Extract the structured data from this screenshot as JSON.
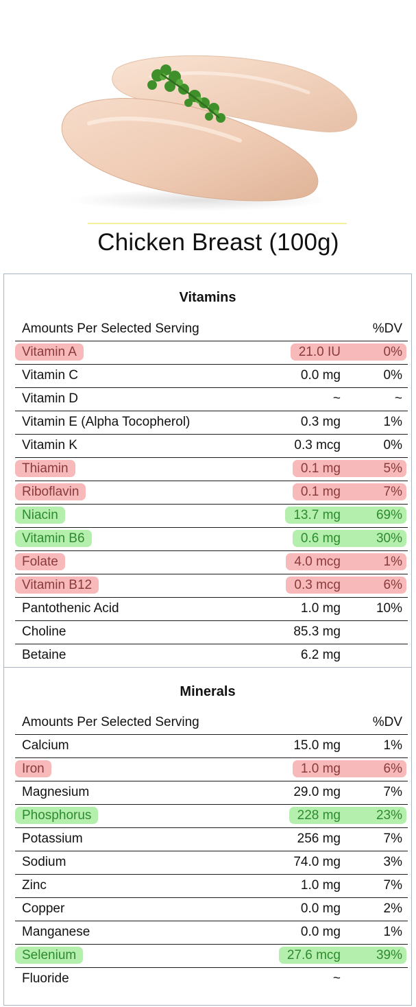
{
  "title": "Chicken Breast (100g)",
  "hero_image": {
    "alt_icon": "chicken-breast-image"
  },
  "colors": {
    "low_highlight": "#f7b9b9",
    "low_text": "#8a3a3a",
    "high_highlight": "#b4efad",
    "high_text": "#2e8a2e",
    "panel_border": "#a9b4c2"
  },
  "vitamins": {
    "heading": "Vitamins",
    "col_name": "Amounts Per Selected Serving",
    "col_dv": "%DV",
    "rows": [
      {
        "name": "Vitamin A",
        "amount": "21.0 IU",
        "dv": "0%",
        "status": "low"
      },
      {
        "name": "Vitamin C",
        "amount": "0.0 mg",
        "dv": "0%",
        "status": "none"
      },
      {
        "name": "Vitamin D",
        "amount": "~",
        "dv": "~",
        "status": "none"
      },
      {
        "name": "Vitamin E (Alpha Tocopherol)",
        "amount": "0.3 mg",
        "dv": "1%",
        "status": "none"
      },
      {
        "name": "Vitamin K",
        "amount": "0.3 mcg",
        "dv": "0%",
        "status": "none"
      },
      {
        "name": "Thiamin",
        "amount": "0.1 mg",
        "dv": "5%",
        "status": "low"
      },
      {
        "name": "Riboflavin",
        "amount": "0.1 mg",
        "dv": "7%",
        "status": "low"
      },
      {
        "name": "Niacin",
        "amount": "13.7 mg",
        "dv": "69%",
        "status": "high"
      },
      {
        "name": "Vitamin B6",
        "amount": "0.6 mg",
        "dv": "30%",
        "status": "high"
      },
      {
        "name": "Folate",
        "amount": "4.0 mcg",
        "dv": "1%",
        "status": "low"
      },
      {
        "name": "Vitamin B12",
        "amount": "0.3 mcg",
        "dv": "6%",
        "status": "low"
      },
      {
        "name": "Pantothenic Acid",
        "amount": "1.0 mg",
        "dv": "10%",
        "status": "none"
      },
      {
        "name": "Choline",
        "amount": "85.3 mg",
        "dv": "",
        "status": "none"
      },
      {
        "name": "Betaine",
        "amount": "6.2 mg",
        "dv": "",
        "status": "none"
      }
    ]
  },
  "minerals": {
    "heading": "Minerals",
    "col_name": "Amounts Per Selected Serving",
    "col_dv": "%DV",
    "rows": [
      {
        "name": "Calcium",
        "amount": "15.0 mg",
        "dv": "1%",
        "status": "none"
      },
      {
        "name": "Iron",
        "amount": "1.0 mg",
        "dv": "6%",
        "status": "low"
      },
      {
        "name": "Magnesium",
        "amount": "29.0 mg",
        "dv": "7%",
        "status": "none"
      },
      {
        "name": "Phosphorus",
        "amount": "228 mg",
        "dv": "23%",
        "status": "high"
      },
      {
        "name": "Potassium",
        "amount": "256 mg",
        "dv": "7%",
        "status": "none"
      },
      {
        "name": "Sodium",
        "amount": "74.0 mg",
        "dv": "3%",
        "status": "none"
      },
      {
        "name": "Zinc",
        "amount": "1.0 mg",
        "dv": "7%",
        "status": "none"
      },
      {
        "name": "Copper",
        "amount": "0.0 mg",
        "dv": "2%",
        "status": "none"
      },
      {
        "name": "Manganese",
        "amount": "0.0 mg",
        "dv": "1%",
        "status": "none"
      },
      {
        "name": "Selenium",
        "amount": "27.6 mcg",
        "dv": "39%",
        "status": "high"
      },
      {
        "name": "Fluoride",
        "amount": "~",
        "dv": "",
        "status": "none"
      }
    ]
  }
}
